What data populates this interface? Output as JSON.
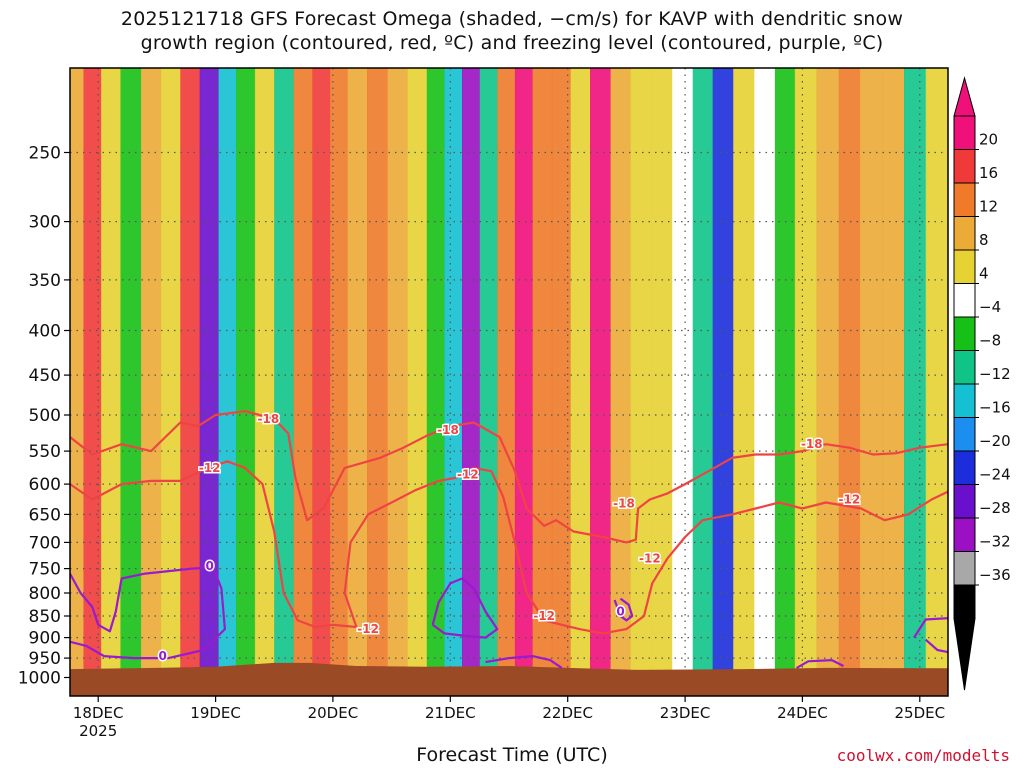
{
  "title_line1": "2025121718 GFS Forecast Omega (shaded, −cm/s) for KAVP with dendritic snow",
  "title_line2": "growth region (contoured, red, ºC) and freezing level (contoured, purple, ºC)",
  "xlabel": "Forecast Time (UTC)",
  "credit": "coolwx.com/modelts",
  "colors": {
    "dgz_contour": "#ee4444",
    "freezing_contour": "#9a1ad0",
    "terrain": "#9a4a24",
    "grid": "#555555"
  },
  "chart_data": {
    "type": "heatmap",
    "title": "2025121718 GFS Forecast Omega (shaded, −cm/s) for KAVP with dendritic snow growth region (contoured, red, ºC) and freezing level (contoured, purple, ºC)",
    "xlabel": "Forecast Time (UTC)",
    "ylabel": "",
    "x_ticks": [
      {
        "day": 18,
        "label": "18DEC"
      },
      {
        "day": 19,
        "label": "19DEC"
      },
      {
        "day": 20,
        "label": "20DEC"
      },
      {
        "day": 21,
        "label": "21DEC"
      },
      {
        "day": 22,
        "label": "22DEC"
      },
      {
        "day": 23,
        "label": "23DEC"
      },
      {
        "day": 24,
        "label": "24DEC"
      },
      {
        "day": 25,
        "label": "25DEC"
      }
    ],
    "x_year_label": "2025",
    "x_range_day": [
      17.76,
      25.24
    ],
    "y_ticks": [
      250,
      300,
      350,
      400,
      450,
      500,
      550,
      600,
      650,
      700,
      750,
      800,
      850,
      900,
      950,
      1000
    ],
    "y_range_hPa": [
      200,
      1050
    ],
    "y_scale": "log",
    "grid": true,
    "colorbar": {
      "labels": [
        "20",
        "16",
        "12",
        "8",
        "4",
        "−4",
        "−8",
        "−12",
        "−16",
        "−20",
        "−24",
        "−28",
        "−32",
        "−36"
      ],
      "colors": [
        "#f0107a",
        "#f03a3a",
        "#ee7a2a",
        "#ecaa36",
        "#e6d232",
        "#ffffff",
        "#16c016",
        "#10c488",
        "#14c0d2",
        "#1c8ef0",
        "#1c2edc",
        "#6a10cc",
        "#9a10c2",
        "#a8a8a8",
        "#000000"
      ],
      "top_arrow_color": "#f0107a",
      "bottom_arrow_color": "#000000"
    },
    "omega_bands": [
      {
        "day": 17.8,
        "value": 8
      },
      {
        "day": 17.95,
        "value": 18
      },
      {
        "day": 18.1,
        "value": 6
      },
      {
        "day": 18.28,
        "value": -6
      },
      {
        "day": 18.45,
        "value": 10
      },
      {
        "day": 18.62,
        "value": 4
      },
      {
        "day": 18.78,
        "value": 16
      },
      {
        "day": 18.95,
        "value": -26
      },
      {
        "day": 19.1,
        "value": -14
      },
      {
        "day": 19.25,
        "value": -6
      },
      {
        "day": 19.42,
        "value": 6
      },
      {
        "day": 19.58,
        "value": -8
      },
      {
        "day": 19.75,
        "value": 12
      },
      {
        "day": 19.9,
        "value": 18
      },
      {
        "day": 20.05,
        "value": 12
      },
      {
        "day": 20.2,
        "value": 8
      },
      {
        "day": 20.38,
        "value": 14
      },
      {
        "day": 20.55,
        "value": 10
      },
      {
        "day": 20.72,
        "value": 6
      },
      {
        "day": 20.88,
        "value": -4
      },
      {
        "day": 21.02,
        "value": -14
      },
      {
        "day": 21.18,
        "value": -30
      },
      {
        "day": 21.32,
        "value": -10
      },
      {
        "day": 21.48,
        "value": 14
      },
      {
        "day": 21.62,
        "value": 20
      },
      {
        "day": 21.78,
        "value": 12
      },
      {
        "day": 21.95,
        "value": 14
      },
      {
        "day": 22.1,
        "value": 6
      },
      {
        "day": 22.28,
        "value": 20
      },
      {
        "day": 22.45,
        "value": 10
      },
      {
        "day": 22.62,
        "value": 6
      },
      {
        "day": 22.8,
        "value": 4
      },
      {
        "day": 22.98,
        "value": 2
      },
      {
        "day": 23.15,
        "value": -8
      },
      {
        "day": 23.32,
        "value": -22
      },
      {
        "day": 23.5,
        "value": 4
      },
      {
        "day": 23.68,
        "value": 2
      },
      {
        "day": 23.85,
        "value": -6
      },
      {
        "day": 24.02,
        "value": 6
      },
      {
        "day": 24.22,
        "value": 10
      },
      {
        "day": 24.4,
        "value": 14
      },
      {
        "day": 24.58,
        "value": 10
      },
      {
        "day": 24.78,
        "value": 8
      },
      {
        "day": 24.95,
        "value": -10
      },
      {
        "day": 25.15,
        "value": 6
      }
    ],
    "contours": [
      {
        "name": "-18",
        "color": "#ee4444",
        "labels": [
          {
            "day": 19.45,
            "p": 505,
            "text": "-18"
          },
          {
            "day": 20.98,
            "p": 520,
            "text": "-18"
          },
          {
            "day": 22.48,
            "p": 632,
            "text": "-18"
          },
          {
            "day": 24.08,
            "p": 540,
            "text": "-18"
          }
        ],
        "points": [
          [
            17.76,
            530
          ],
          [
            17.95,
            555
          ],
          [
            18.2,
            540
          ],
          [
            18.45,
            550
          ],
          [
            18.7,
            510
          ],
          [
            18.85,
            515
          ],
          [
            19.0,
            500
          ],
          [
            19.25,
            495
          ],
          [
            19.5,
            505
          ],
          [
            19.62,
            525
          ],
          [
            19.68,
            590
          ],
          [
            19.78,
            660
          ],
          [
            19.92,
            640
          ],
          [
            20.1,
            575
          ],
          [
            20.4,
            560
          ],
          [
            20.6,
            545
          ],
          [
            20.8,
            528
          ],
          [
            21.0,
            515
          ],
          [
            21.2,
            510
          ],
          [
            21.42,
            530
          ],
          [
            21.55,
            580
          ],
          [
            21.65,
            640
          ],
          [
            21.8,
            670
          ],
          [
            21.9,
            660
          ],
          [
            22.05,
            680
          ],
          [
            22.3,
            690
          ],
          [
            22.5,
            700
          ],
          [
            22.58,
            695
          ],
          [
            22.6,
            640
          ],
          [
            22.7,
            625
          ],
          [
            22.85,
            615
          ],
          [
            23.0,
            600
          ],
          [
            23.2,
            580
          ],
          [
            23.4,
            560
          ],
          [
            23.6,
            555
          ],
          [
            23.8,
            555
          ],
          [
            24.0,
            550
          ],
          [
            24.2,
            540
          ],
          [
            24.4,
            545
          ],
          [
            24.6,
            555
          ],
          [
            24.8,
            553
          ],
          [
            25.0,
            545
          ],
          [
            25.24,
            540
          ]
        ]
      },
      {
        "name": "-12",
        "color": "#ee4444",
        "labels": [
          {
            "day": 18.95,
            "p": 575,
            "text": "-12"
          },
          {
            "day": 20.3,
            "p": 880,
            "text": "-12"
          },
          {
            "day": 21.15,
            "p": 585,
            "text": "-12"
          },
          {
            "day": 21.8,
            "p": 850,
            "text": "-12"
          },
          {
            "day": 22.7,
            "p": 730,
            "text": "-12"
          },
          {
            "day": 24.4,
            "p": 625,
            "text": "-12"
          }
        ],
        "points": [
          [
            17.76,
            600
          ],
          [
            17.95,
            625
          ],
          [
            18.2,
            600
          ],
          [
            18.45,
            595
          ],
          [
            18.7,
            595
          ],
          [
            18.9,
            578
          ],
          [
            19.1,
            565
          ],
          [
            19.25,
            575
          ],
          [
            19.4,
            600
          ],
          [
            19.5,
            680
          ],
          [
            19.58,
            800
          ],
          [
            19.7,
            860
          ],
          [
            19.85,
            875
          ],
          [
            20.0,
            870
          ],
          [
            20.2,
            875
          ],
          [
            20.1,
            800
          ],
          [
            20.15,
            700
          ],
          [
            20.3,
            650
          ],
          [
            20.5,
            630
          ],
          [
            20.7,
            610
          ],
          [
            20.9,
            595
          ],
          [
            21.05,
            590
          ],
          [
            21.2,
            575
          ],
          [
            21.35,
            580
          ],
          [
            21.45,
            620
          ],
          [
            21.55,
            700
          ],
          [
            21.65,
            800
          ],
          [
            21.8,
            860
          ],
          [
            21.95,
            870
          ],
          [
            22.1,
            880
          ],
          [
            22.3,
            890
          ],
          [
            22.5,
            880
          ],
          [
            22.65,
            850
          ],
          [
            22.72,
            780
          ],
          [
            22.85,
            730
          ],
          [
            23.0,
            690
          ],
          [
            23.15,
            660
          ],
          [
            23.4,
            650
          ],
          [
            23.6,
            640
          ],
          [
            23.8,
            630
          ],
          [
            24.0,
            640
          ],
          [
            24.2,
            630
          ],
          [
            24.5,
            640
          ],
          [
            24.7,
            660
          ],
          [
            24.9,
            650
          ],
          [
            25.1,
            625
          ],
          [
            25.24,
            612
          ]
        ]
      },
      {
        "name": "0",
        "color": "#9a1ad0",
        "labels": [
          {
            "day": 18.95,
            "p": 745,
            "text": "0"
          },
          {
            "day": 18.55,
            "p": 945,
            "text": "0"
          },
          {
            "day": 22.45,
            "p": 840,
            "text": "0"
          }
        ],
        "points": [
          [
            17.76,
            760
          ],
          [
            17.85,
            800
          ],
          [
            17.95,
            830
          ],
          [
            18.0,
            870
          ],
          [
            18.1,
            885
          ],
          [
            18.15,
            840
          ],
          [
            18.2,
            770
          ],
          [
            18.4,
            760
          ],
          [
            18.6,
            755
          ],
          [
            18.8,
            750
          ],
          [
            18.95,
            748
          ],
          [
            19.0,
            760
          ],
          [
            19.05,
            790
          ],
          [
            19.08,
            880
          ],
          [
            18.9,
            930
          ],
          [
            18.6,
            950
          ],
          [
            18.3,
            950
          ],
          [
            18.05,
            945
          ],
          [
            17.9,
            920
          ],
          [
            17.76,
            910
          ]
        ]
      },
      {
        "name": "0-b",
        "color": "#9a1ad0",
        "labels": [],
        "points": [
          [
            20.85,
            870
          ],
          [
            20.9,
            820
          ],
          [
            21.0,
            780
          ],
          [
            21.1,
            770
          ],
          [
            21.2,
            790
          ],
          [
            21.3,
            840
          ],
          [
            21.4,
            880
          ],
          [
            21.3,
            900
          ],
          [
            21.1,
            895
          ],
          [
            20.95,
            890
          ],
          [
            20.85,
            870
          ]
        ]
      },
      {
        "name": "0-c",
        "color": "#9a1ad0",
        "labels": [],
        "points": [
          [
            22.4,
            815
          ],
          [
            22.45,
            850
          ],
          [
            22.5,
            860
          ],
          [
            22.55,
            850
          ],
          [
            22.52,
            825
          ],
          [
            22.45,
            812
          ]
        ]
      },
      {
        "name": "0-d",
        "color": "#9a1ad0",
        "labels": [],
        "points": [
          [
            21.3,
            960
          ],
          [
            21.5,
            950
          ],
          [
            21.7,
            945
          ],
          [
            21.85,
            955
          ],
          [
            21.95,
            975
          ]
        ]
      },
      {
        "name": "0-e",
        "color": "#9a1ad0",
        "labels": [],
        "points": [
          [
            23.95,
            975
          ],
          [
            24.05,
            958
          ],
          [
            24.25,
            955
          ],
          [
            24.35,
            970
          ]
        ]
      },
      {
        "name": "0-f",
        "color": "#9a1ad0",
        "labels": [],
        "points": [
          [
            24.95,
            900
          ],
          [
            25.05,
            858
          ],
          [
            25.24,
            855
          ]
        ]
      },
      {
        "name": "0-g",
        "color": "#9a1ad0",
        "labels": [],
        "points": [
          [
            25.05,
            905
          ],
          [
            25.15,
            930
          ],
          [
            25.24,
            935
          ]
        ]
      }
    ],
    "surface_pressure": [
      [
        17.76,
        978
      ],
      [
        18.5,
        975
      ],
      [
        19.0,
        972
      ],
      [
        19.5,
        962
      ],
      [
        19.8,
        962
      ],
      [
        20.2,
        970
      ],
      [
        20.8,
        972
      ],
      [
        21.5,
        970
      ],
      [
        22.0,
        975
      ],
      [
        22.6,
        980
      ],
      [
        23.5,
        978
      ],
      [
        24.2,
        975
      ],
      [
        25.24,
        976
      ]
    ]
  }
}
